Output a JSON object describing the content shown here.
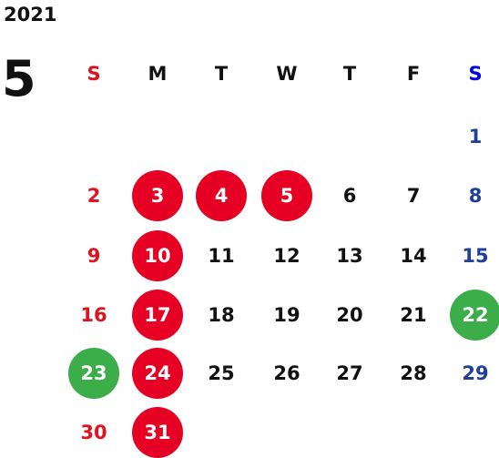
{
  "year": "2021",
  "month": "5",
  "colors": {
    "sunday": "#e0121f",
    "saturday": "#1f3f9a",
    "saturday_header": "#0000e6",
    "weekday": "#111111",
    "holiday_circle": "#e60023",
    "special_circle": "#3bae49",
    "circle_text": "#ffffff"
  },
  "weekdays": [
    "S",
    "M",
    "T",
    "W",
    "T",
    "F",
    "S"
  ],
  "weeks": [
    [
      null,
      null,
      null,
      null,
      null,
      null,
      "1"
    ],
    [
      "2",
      "3",
      "4",
      "5",
      "6",
      "7",
      "8"
    ],
    [
      "9",
      "10",
      "11",
      "12",
      "13",
      "14",
      "15"
    ],
    [
      "16",
      "17",
      "18",
      "19",
      "20",
      "21",
      "22"
    ],
    [
      "23",
      "24",
      "25",
      "26",
      "27",
      "28",
      "29"
    ],
    [
      "30",
      "31",
      null,
      null,
      null,
      null,
      null
    ]
  ],
  "red_circled_days": [
    "3",
    "4",
    "5",
    "10",
    "17",
    "24",
    "31"
  ],
  "green_circled_days": [
    "22",
    "23"
  ]
}
